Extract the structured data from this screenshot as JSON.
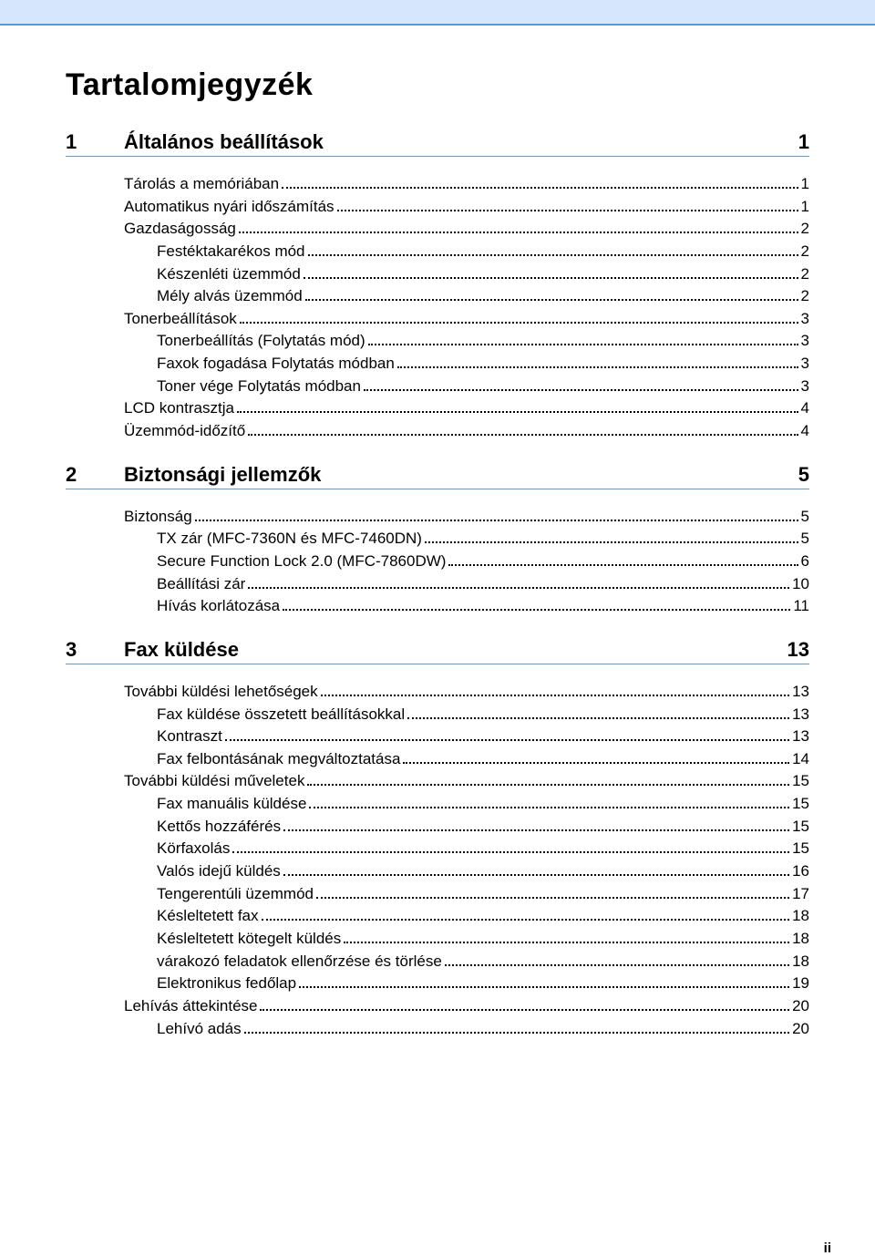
{
  "colors": {
    "topbar_bg": "#d6e6fb",
    "accent_border": "#5c98e0",
    "text": "#000000",
    "background": "#ffffff"
  },
  "typography": {
    "title_fontsize": 34,
    "section_fontsize": 22,
    "entry_fontsize": 17,
    "font_family": "Arial"
  },
  "pageTitle": "Tartalomjegyzék",
  "pageNumber": "ii",
  "indentStepPx": 36,
  "sections": [
    {
      "num": "1",
      "title": "Általános beállítások",
      "page": "1",
      "entries": [
        {
          "label": "Tárolás a memóriában",
          "page": "1",
          "indent": 0
        },
        {
          "label": "Automatikus nyári időszámítás",
          "page": "1",
          "indent": 0
        },
        {
          "label": "Gazdaságosság",
          "page": "2",
          "indent": 0
        },
        {
          "label": "Festéktakarékos mód",
          "page": "2",
          "indent": 1
        },
        {
          "label": "Készenléti üzemmód",
          "page": "2",
          "indent": 1
        },
        {
          "label": "Mély alvás üzemmód",
          "page": "2",
          "indent": 1
        },
        {
          "label": "Tonerbeállítások",
          "page": "3",
          "indent": 0
        },
        {
          "label": "Tonerbeállítás (Folytatás mód)",
          "page": "3",
          "indent": 1
        },
        {
          "label": "Faxok fogadása Folytatás módban",
          "page": "3",
          "indent": 1
        },
        {
          "label": "Toner vége Folytatás módban",
          "page": "3",
          "indent": 1
        },
        {
          "label": "LCD kontrasztja",
          "page": "4",
          "indent": 0
        },
        {
          "label": "Üzemmód-időzítő",
          "page": "4",
          "indent": 0
        }
      ]
    },
    {
      "num": "2",
      "title": "Biztonsági jellemzők",
      "page": "5",
      "entries": [
        {
          "label": "Biztonság",
          "page": "5",
          "indent": 0
        },
        {
          "label": "TX zár (MFC-7360N és MFC-7460DN)",
          "page": "5",
          "indent": 1
        },
        {
          "label": "Secure Function Lock 2.0 (MFC-7860DW)",
          "page": "6",
          "indent": 1
        },
        {
          "label": "Beállítási zár",
          "page": "10",
          "indent": 1
        },
        {
          "label": "Hívás korlátozása",
          "page": "11",
          "indent": 1
        }
      ]
    },
    {
      "num": "3",
      "title": "Fax küldése",
      "page": "13",
      "entries": [
        {
          "label": "További küldési lehetőségek",
          "page": "13",
          "indent": 0
        },
        {
          "label": "Fax küldése összetett beállításokkal",
          "page": "13",
          "indent": 1
        },
        {
          "label": "Kontraszt",
          "page": "13",
          "indent": 1
        },
        {
          "label": "Fax felbontásának megváltoztatása",
          "page": "14",
          "indent": 1
        },
        {
          "label": "További küldési műveletek",
          "page": "15",
          "indent": 0
        },
        {
          "label": "Fax manuális küldése",
          "page": "15",
          "indent": 1
        },
        {
          "label": "Kettős hozzáférés",
          "page": "15",
          "indent": 1
        },
        {
          "label": "Körfaxolás",
          "page": "15",
          "indent": 1
        },
        {
          "label": "Valós idejű küldés",
          "page": "16",
          "indent": 1
        },
        {
          "label": "Tengerentúli üzemmód",
          "page": "17",
          "indent": 1
        },
        {
          "label": "Késleltetett fax",
          "page": "18",
          "indent": 1
        },
        {
          "label": "Késleltetett kötegelt küldés",
          "page": "18",
          "indent": 1
        },
        {
          "label": "várakozó feladatok ellenőrzése és törlése",
          "page": "18",
          "indent": 1
        },
        {
          "label": "Elektronikus fedőlap",
          "page": "19",
          "indent": 1
        },
        {
          "label": "Lehívás áttekintése",
          "page": "20",
          "indent": 0
        },
        {
          "label": "Lehívó adás",
          "page": "20",
          "indent": 1
        }
      ]
    }
  ]
}
